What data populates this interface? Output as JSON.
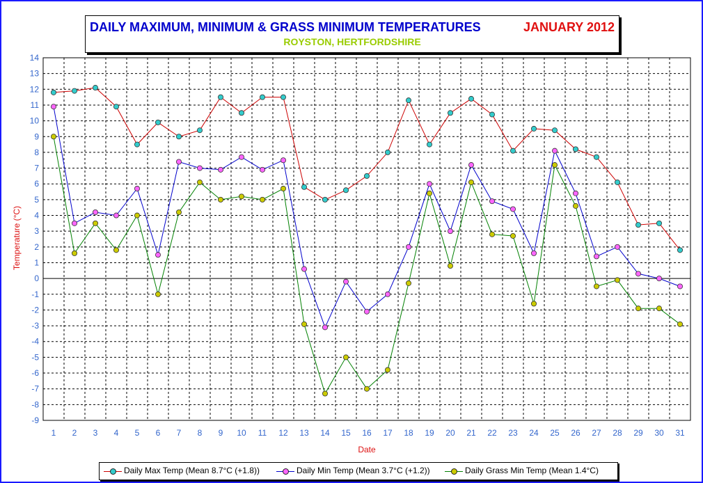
{
  "title": {
    "main": "DAILY MAXIMUM, MINIMUM & GRASS MINIMUM TEMPERATURES",
    "month": "JANUARY 2012",
    "location": "ROYSTON, HERTFORDSHIRE"
  },
  "colors": {
    "max_line": "#cc0000",
    "max_marker": "#33cccc",
    "min_line": "#0000cc",
    "min_marker": "#ff66ff",
    "grass_line": "#008000",
    "grass_marker": "#cccc00",
    "axis_text": "#3366cc",
    "axis_title": "#dd1111"
  },
  "legend": {
    "max_label": "Daily Max Temp (Mean 8.7°C (+1.8))",
    "min_label": "Daily Min Temp (Mean 3.7°C (+1.2))",
    "grass_label": "Daily Grass Min Temp (Mean 1.4°C)"
  },
  "chart_data": {
    "type": "line",
    "title": "DAILY MAXIMUM, MINIMUM & GRASS MINIMUM TEMPERATURES",
    "xlabel": "Date",
    "ylabel": "Temperature (°C)",
    "ylim": [
      -9,
      14
    ],
    "yticks": [
      14,
      13,
      12,
      11,
      10,
      9,
      8,
      7,
      6,
      5,
      4,
      3,
      2,
      1,
      0,
      -1,
      -2,
      -3,
      -4,
      -5,
      -6,
      -7,
      -8,
      -9
    ],
    "grid": true,
    "legend_position": "bottom",
    "x": [
      1,
      2,
      3,
      4,
      5,
      6,
      7,
      8,
      9,
      10,
      11,
      12,
      13,
      14,
      15,
      16,
      17,
      18,
      19,
      20,
      21,
      22,
      23,
      24,
      25,
      26,
      27,
      28,
      29,
      30,
      31
    ],
    "series": [
      {
        "name": "Daily Max Temp (Mean 8.7°C (+1.8))",
        "key": "max",
        "values": [
          11.8,
          11.9,
          12.1,
          10.9,
          8.5,
          9.9,
          9.0,
          9.4,
          11.5,
          10.5,
          11.5,
          11.5,
          5.8,
          5.0,
          5.6,
          6.5,
          8.0,
          11.3,
          8.5,
          10.5,
          11.4,
          10.4,
          8.1,
          9.5,
          9.4,
          8.2,
          7.7,
          6.1,
          3.4,
          3.5,
          1.8
        ]
      },
      {
        "name": "Daily Min Temp (Mean 3.7°C (+1.2))",
        "key": "min",
        "values": [
          10.9,
          3.5,
          4.2,
          4.0,
          5.7,
          1.5,
          7.4,
          7.0,
          6.9,
          7.7,
          6.9,
          7.5,
          0.6,
          -3.1,
          -0.2,
          -2.1,
          -1.0,
          2.0,
          6.0,
          3.0,
          7.2,
          4.9,
          4.4,
          1.6,
          8.1,
          5.4,
          1.4,
          2.0,
          0.3,
          0.0,
          -0.5
        ]
      },
      {
        "name": "Daily Grass Min Temp (Mean 1.4°C)",
        "key": "grass",
        "values": [
          9.0,
          1.6,
          3.5,
          1.8,
          4.0,
          -1.0,
          4.2,
          6.1,
          5.0,
          5.2,
          5.0,
          5.7,
          -2.9,
          -7.3,
          -5.0,
          -7.0,
          -5.8,
          -0.3,
          5.4,
          0.8,
          6.1,
          2.8,
          2.7,
          -1.6,
          7.2,
          4.6,
          -0.5,
          -0.1,
          -1.9,
          -1.9,
          -2.9
        ]
      }
    ]
  }
}
